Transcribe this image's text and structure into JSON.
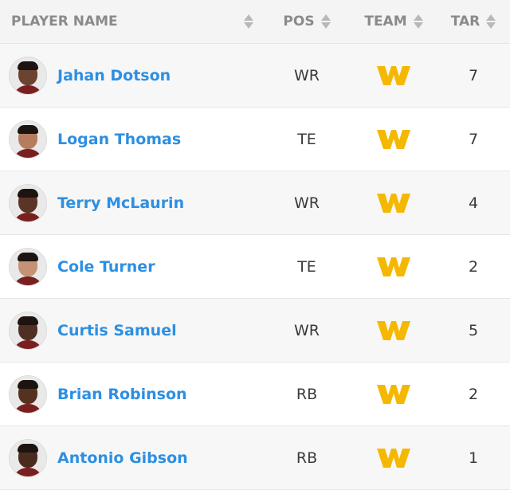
{
  "headers": {
    "player": "PLAYER NAME",
    "pos": "POS",
    "team": "TEAM",
    "tar": "TAR"
  },
  "colors": {
    "link": "#2d8fe2",
    "team_logo": "#f5b800",
    "header_bg": "#f4f4f4"
  },
  "rows": [
    {
      "name": "Jahan Dotson",
      "pos": "WR",
      "team_logo": "washington-w-logo",
      "tar": "7",
      "skin": "#6b4330"
    },
    {
      "name": "Logan Thomas",
      "pos": "TE",
      "team_logo": "washington-w-logo",
      "tar": "7",
      "skin": "#b57d5e"
    },
    {
      "name": "Terry McLaurin",
      "pos": "WR",
      "team_logo": "washington-w-logo",
      "tar": "4",
      "skin": "#5a3526"
    },
    {
      "name": "Cole Turner",
      "pos": "TE",
      "team_logo": "washington-w-logo",
      "tar": "2",
      "skin": "#c49275"
    },
    {
      "name": "Curtis Samuel",
      "pos": "WR",
      "team_logo": "washington-w-logo",
      "tar": "5",
      "skin": "#4e2f22"
    },
    {
      "name": "Brian Robinson",
      "pos": "RB",
      "team_logo": "washington-w-logo",
      "tar": "2",
      "skin": "#55321f"
    },
    {
      "name": "Antonio Gibson",
      "pos": "RB",
      "team_logo": "washington-w-logo",
      "tar": "1",
      "skin": "#4a2c1e"
    }
  ]
}
